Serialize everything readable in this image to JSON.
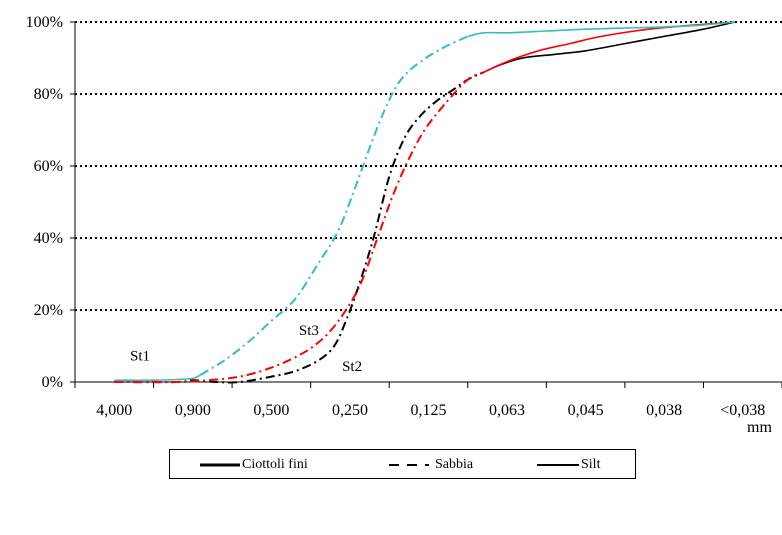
{
  "chart_data": {
    "type": "line",
    "title": "",
    "xlabel": "",
    "ylabel": "",
    "unit_label": "mm",
    "categories": [
      "4,000",
      "0,900",
      "0,500",
      "0,250",
      "0,125",
      "0,063",
      "0,045",
      "0,038",
      "<0,038"
    ],
    "y_ticks": [
      "0%",
      "20%",
      "40%",
      "60%",
      "80%",
      "100%"
    ],
    "ylim": [
      0,
      100
    ],
    "grid": "horizontal dotted",
    "series": [
      {
        "name": "St1",
        "color": "#000000",
        "style": "dash-dot",
        "points": [
          [
            0.0,
            0
          ],
          [
            0.8,
            0
          ],
          [
            1.0,
            0.5
          ],
          [
            1.3,
            0
          ],
          [
            1.6,
            0
          ],
          [
            2.0,
            1.5
          ],
          [
            2.3,
            3
          ],
          [
            2.6,
            6
          ],
          [
            2.8,
            10
          ],
          [
            2.95,
            17
          ],
          [
            3.1,
            26
          ],
          [
            3.3,
            40
          ],
          [
            3.5,
            57
          ],
          [
            3.7,
            68
          ],
          [
            3.9,
            74
          ],
          [
            4.1,
            78
          ],
          [
            4.3,
            81
          ],
          [
            4.5,
            84
          ],
          [
            4.7,
            86
          ]
        ]
      },
      {
        "name": "St2",
        "color": "#ff0000",
        "style": "dash-dot",
        "points": [
          [
            0.0,
            0
          ],
          [
            0.8,
            0
          ],
          [
            1.2,
            0.5
          ],
          [
            1.6,
            1.5
          ],
          [
            2.0,
            4
          ],
          [
            2.4,
            8
          ],
          [
            2.7,
            13
          ],
          [
            2.95,
            20
          ],
          [
            3.15,
            28
          ],
          [
            3.35,
            40
          ],
          [
            3.55,
            52
          ],
          [
            3.75,
            62
          ],
          [
            3.95,
            70
          ],
          [
            4.2,
            77
          ],
          [
            4.5,
            84
          ],
          [
            4.7,
            86
          ]
        ]
      },
      {
        "name": "St3",
        "color": "#33bdbd",
        "style": "dash-dot",
        "points": [
          [
            1.1,
            2
          ],
          [
            1.4,
            6
          ],
          [
            1.7,
            11
          ],
          [
            2.0,
            17
          ],
          [
            2.3,
            23
          ],
          [
            2.6,
            33
          ],
          [
            2.85,
            42
          ],
          [
            3.05,
            53
          ],
          [
            3.25,
            65
          ],
          [
            3.45,
            76
          ],
          [
            3.65,
            84
          ],
          [
            3.9,
            89
          ],
          [
            4.2,
            93
          ],
          [
            4.5,
            96
          ]
        ]
      },
      {
        "name": "St1",
        "color": "#000000",
        "style": "solid",
        "points": [
          [
            4.7,
            86
          ],
          [
            4.9,
            88
          ],
          [
            5.2,
            90
          ],
          [
            5.6,
            91
          ],
          [
            6.0,
            92
          ],
          [
            6.5,
            94
          ],
          [
            7.0,
            96
          ],
          [
            7.5,
            98
          ],
          [
            7.9,
            100
          ]
        ]
      },
      {
        "name": "St2",
        "color": "#ff0000",
        "style": "solid",
        "points": [
          [
            4.7,
            86
          ],
          [
            5.0,
            89
          ],
          [
            5.4,
            92
          ],
          [
            5.8,
            94
          ],
          [
            6.2,
            96
          ],
          [
            6.8,
            98
          ],
          [
            7.3,
            99
          ],
          [
            7.9,
            100
          ]
        ]
      },
      {
        "name": "St3",
        "color": "#33bdbd",
        "style": "solid",
        "points": [
          [
            4.5,
            96
          ],
          [
            4.7,
            97
          ],
          [
            5.0,
            97
          ],
          [
            5.5,
            97.5
          ],
          [
            6.0,
            98
          ],
          [
            6.8,
            98.5
          ],
          [
            7.4,
            99
          ],
          [
            7.9,
            100
          ]
        ]
      },
      {
        "name": "St3",
        "color": "#33bdbd",
        "style": "solid",
        "points": [
          [
            0.0,
            0.5
          ],
          [
            0.5,
            0.5
          ],
          [
            0.8,
            0.7
          ],
          [
            1.0,
            1
          ],
          [
            1.1,
            2
          ]
        ]
      }
    ],
    "annotations": [
      {
        "text": "St1",
        "x": 0.2,
        "y": 6
      },
      {
        "text": "St3",
        "x": 2.35,
        "y": 13
      },
      {
        "text": "St2",
        "x": 2.9,
        "y": 3
      }
    ],
    "legend": {
      "position": "bottom",
      "items": [
        {
          "label": "Ciottoli fini",
          "style": "solid-thick"
        },
        {
          "label": "Sabbia",
          "style": "dash"
        },
        {
          "label": "Silt",
          "style": "solid"
        }
      ]
    }
  }
}
